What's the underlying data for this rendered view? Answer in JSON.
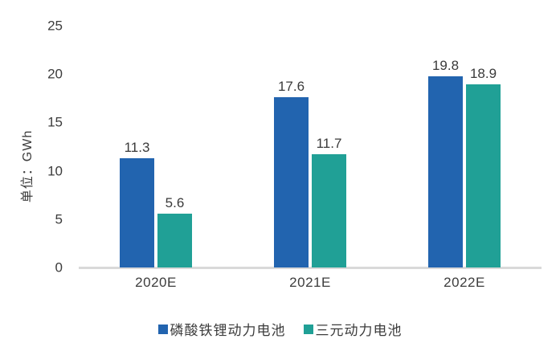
{
  "chart_data": {
    "type": "bar",
    "categories": [
      "2020E",
      "2021E",
      "2022E"
    ],
    "series": [
      {
        "name": "磷酸铁锂动力电池",
        "color": "#2264AF",
        "values": [
          11.3,
          17.6,
          19.8
        ]
      },
      {
        "name": "三元动力电池",
        "color": "#20A096",
        "values": [
          5.6,
          11.7,
          18.9
        ]
      }
    ],
    "title": "",
    "xlabel": "",
    "ylabel": "单位：GWh",
    "ylim": [
      0,
      25
    ],
    "yticks": [
      0,
      5,
      10,
      15,
      20,
      25
    ],
    "grid": false,
    "value_labels": true,
    "legend_position": "bottom"
  },
  "colors": {
    "axis_line": "#D9D9D9",
    "text": "#3C3C3C",
    "background": "#FFFFFF"
  }
}
